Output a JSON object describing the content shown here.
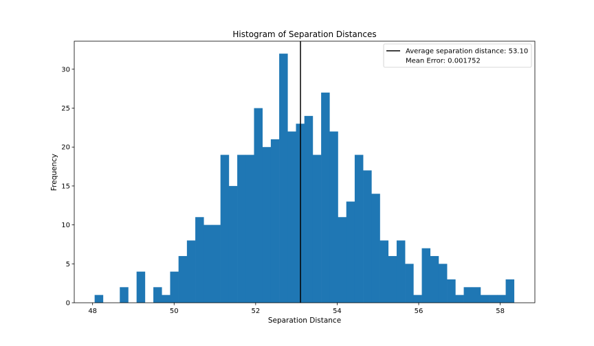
{
  "chart_data": {
    "type": "bar",
    "title": "Histogram of Separation Distances",
    "xlabel": "Separation Distance",
    "ylabel": "Frequency",
    "xlim": [
      47.55,
      58.85
    ],
    "ylim": [
      0,
      33.6
    ],
    "xticks": [
      48,
      50,
      52,
      54,
      56,
      58
    ],
    "yticks": [
      0,
      5,
      10,
      15,
      20,
      25,
      30
    ],
    "bin_start": 48.05,
    "bin_width": 0.2058,
    "bar_color": "#1f77b4",
    "counts": [
      1,
      0,
      0,
      2,
      0,
      4,
      0,
      2,
      1,
      4,
      6,
      8,
      11,
      10,
      10,
      19,
      15,
      19,
      19,
      25,
      20,
      21,
      32,
      22,
      23,
      24,
      19,
      27,
      22,
      11,
      13,
      19,
      17,
      14,
      8,
      6,
      8,
      5,
      1,
      7,
      6,
      5,
      3,
      1,
      2,
      2,
      1,
      1,
      1,
      3
    ],
    "vline": {
      "x": 53.1,
      "color": "#000000"
    },
    "legend": {
      "position": "upper right",
      "entries": [
        {
          "label": "Average separation distance: 53.10",
          "marker": "line"
        },
        {
          "label": "Mean Error: 0.001752",
          "marker": "none"
        }
      ]
    }
  }
}
